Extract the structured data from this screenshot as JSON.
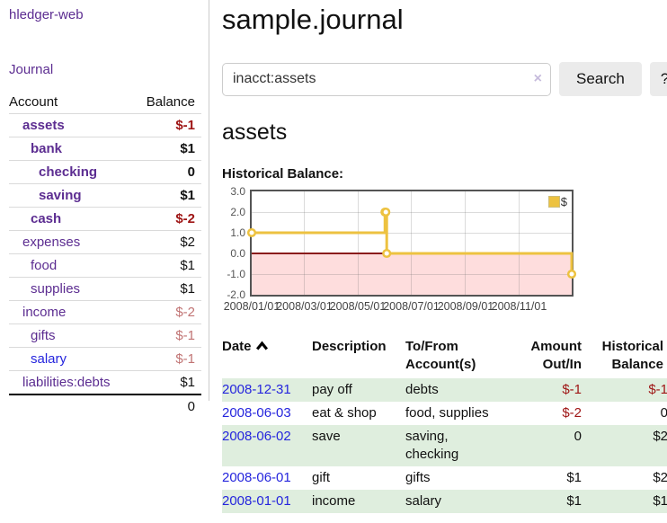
{
  "app": {
    "brand": "hledger-web",
    "nav": {
      "journal": "Journal"
    }
  },
  "sidebar": {
    "headers": {
      "account": "Account",
      "balance": "Balance"
    },
    "accounts": [
      {
        "name": "assets",
        "depth": 1,
        "bold": true,
        "balance": "$-1",
        "balance_color": "dark-red"
      },
      {
        "name": "bank",
        "depth": 2,
        "bold": true,
        "balance": "$1",
        "balance_color": "black"
      },
      {
        "name": "checking",
        "depth": 3,
        "bold": true,
        "balance": "0",
        "balance_color": "black"
      },
      {
        "name": "saving",
        "depth": 3,
        "bold": true,
        "balance": "$1",
        "balance_color": "black"
      },
      {
        "name": "cash",
        "depth": 2,
        "bold": true,
        "balance": "$-2",
        "balance_color": "dark-red"
      },
      {
        "name": "expenses",
        "depth": 1,
        "bold": false,
        "balance": "$2",
        "balance_color": "black"
      },
      {
        "name": "food",
        "depth": 2,
        "bold": false,
        "balance": "$1",
        "balance_color": "black"
      },
      {
        "name": "supplies",
        "depth": 2,
        "bold": false,
        "balance": "$1",
        "balance_color": "black"
      },
      {
        "name": "income",
        "depth": 1,
        "bold": false,
        "balance": "$-2",
        "balance_color": "light-red"
      },
      {
        "name": "gifts",
        "depth": 2,
        "bold": false,
        "balance": "$-1",
        "balance_color": "light-red"
      },
      {
        "name": "salary",
        "depth": 2,
        "bold": false,
        "balance": "$-1",
        "balance_color": "light-red",
        "link_color": "blue"
      },
      {
        "name": "liabilities:debts",
        "depth": 1,
        "bold": false,
        "balance": "$1",
        "balance_color": "black"
      }
    ],
    "total": "0"
  },
  "main": {
    "title": "sample.journal",
    "search": {
      "value": "inacct:assets",
      "clear_icon": "×",
      "search_button": "Search",
      "help_button": "?"
    },
    "section": {
      "title": "assets",
      "chart_label": "Historical Balance:"
    }
  },
  "chart_data": {
    "type": "line",
    "step": true,
    "title": "Historical Balance",
    "series": [
      {
        "name": "$",
        "color": "#edc240",
        "points": [
          [
            "2008-01-01",
            1
          ],
          [
            "2008-06-01",
            2
          ],
          [
            "2008-06-02",
            2
          ],
          [
            "2008-06-03",
            0
          ],
          [
            "2008-12-31",
            -1
          ]
        ]
      }
    ],
    "x_range": [
      "2008-01-01",
      "2008-12-31"
    ],
    "x_ticks": [
      {
        "label": "2008/01/01",
        "date": "2008-01-01"
      },
      {
        "label": "2008/03/01",
        "date": "2008-03-01"
      },
      {
        "label": "2008/05/01",
        "date": "2008-05-01"
      },
      {
        "label": "2008/07/01",
        "date": "2008-07-01"
      },
      {
        "label": "2008/09/01",
        "date": "2008-09-01"
      },
      {
        "label": "2008/11/01",
        "date": "2008-11-01"
      }
    ],
    "y_ticks": [
      {
        "label": "3.0",
        "value": 3
      },
      {
        "label": "2.0",
        "value": 2
      },
      {
        "label": "1.0",
        "value": 1
      },
      {
        "label": "0.0",
        "value": 0
      },
      {
        "label": "-1.0",
        "value": -1
      },
      {
        "label": "-2.0",
        "value": -2
      }
    ],
    "ylim": [
      -2,
      3
    ],
    "grid": true,
    "legend": {
      "label": "$",
      "position": "top-right"
    },
    "zero_line_color": "#8b1c1c",
    "negative_region_color": "#fedddd",
    "border_color": "#545454"
  },
  "transactions": {
    "headers": [
      "Date",
      "Description",
      "To/From Account(s)",
      "Amount Out/In",
      "Historical Balance"
    ],
    "sort_icon": "chevron-up",
    "rows": [
      {
        "date": "2008-12-31",
        "description": "pay off",
        "accounts": "debts",
        "amount": "$-1",
        "amount_negative": true,
        "balance": "$-1",
        "balance_negative": true
      },
      {
        "date": "2008-06-03",
        "description": "eat & shop",
        "accounts": "food, supplies",
        "amount": "$-2",
        "amount_negative": true,
        "balance": "0",
        "balance_negative": false
      },
      {
        "date": "2008-06-02",
        "description": "save",
        "accounts": "saving, checking",
        "amount": "0",
        "amount_negative": false,
        "balance": "$2",
        "balance_negative": false
      },
      {
        "date": "2008-06-01",
        "description": "gift",
        "accounts": "gifts",
        "amount": "$1",
        "amount_negative": false,
        "balance": "$2",
        "balance_negative": false
      },
      {
        "date": "2008-01-01",
        "description": "income",
        "accounts": "salary",
        "amount": "$1",
        "amount_negative": false,
        "balance": "$1",
        "balance_negative": false
      }
    ]
  }
}
